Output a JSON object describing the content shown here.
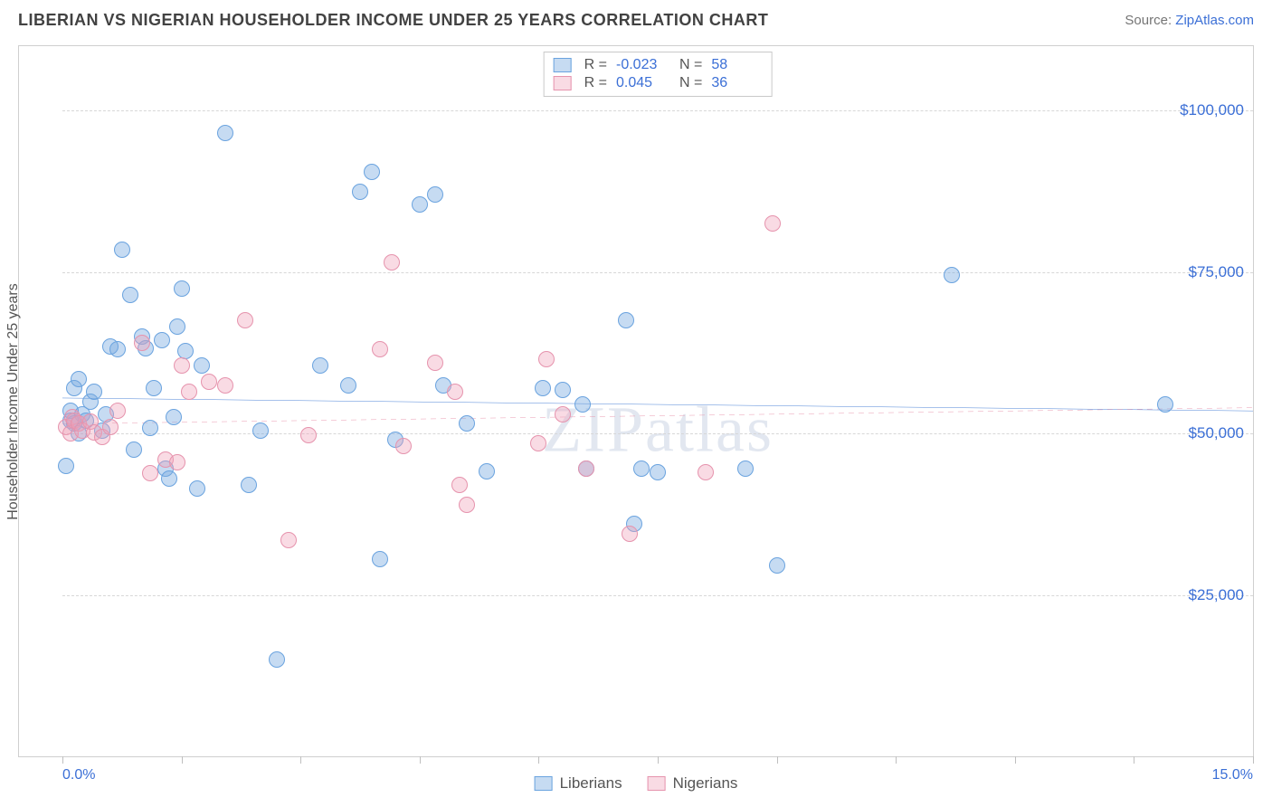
{
  "title": "LIBERIAN VS NIGERIAN HOUSEHOLDER INCOME UNDER 25 YEARS CORRELATION CHART",
  "source_prefix": "Source: ",
  "source_name": "ZipAtlas.com",
  "y_axis_label": "Householder Income Under 25 years",
  "watermark": "ZIPatlas",
  "chart": {
    "type": "scatter",
    "background_color": "#ffffff",
    "grid_color": "#d7d7d7",
    "xlim": [
      0,
      15
    ],
    "ylim": [
      0,
      110000
    ],
    "x_ticks": [
      0,
      1.5,
      3,
      4.5,
      6,
      7.5,
      9,
      10.5,
      12,
      13.5,
      15
    ],
    "x_labels": {
      "0": "0.0%",
      "15": "15.0%"
    },
    "y_gridlines": [
      25000,
      50000,
      75000,
      100000
    ],
    "y_labels": {
      "25000": "$25,000",
      "50000": "$50,000",
      "75000": "$75,000",
      "100000": "$100,000"
    },
    "marker_radius": 9,
    "marker_border_width": 1.5,
    "trend_line_width": 3,
    "label_fontsize": 16,
    "tick_color": "#bfbfbf"
  },
  "series": [
    {
      "key": "liberians",
      "name": "Liberians",
      "fill": "rgba(120,170,225,0.42)",
      "stroke": "#6aa3df",
      "line_color": "#2f6fd0",
      "R": "-0.023",
      "N": "58",
      "trend": {
        "x1": 0,
        "y1": 55500,
        "x2": 15,
        "y2": 53500,
        "dash": "none"
      },
      "points": [
        [
          0.05,
          45000
        ],
        [
          0.1,
          52000
        ],
        [
          0.1,
          53500
        ],
        [
          0.15,
          51500
        ],
        [
          0.15,
          57000
        ],
        [
          0.2,
          58500
        ],
        [
          0.2,
          50000
        ],
        [
          0.25,
          53000
        ],
        [
          0.3,
          52000
        ],
        [
          0.35,
          55000
        ],
        [
          0.4,
          56500
        ],
        [
          0.5,
          50500
        ],
        [
          0.55,
          53000
        ],
        [
          0.6,
          63500
        ],
        [
          0.7,
          63000
        ],
        [
          0.75,
          78500
        ],
        [
          0.85,
          71500
        ],
        [
          0.9,
          47500
        ],
        [
          1.0,
          65000
        ],
        [
          1.05,
          63200
        ],
        [
          1.1,
          50800
        ],
        [
          1.15,
          57000
        ],
        [
          1.25,
          64500
        ],
        [
          1.3,
          44500
        ],
        [
          1.35,
          43000
        ],
        [
          1.4,
          52500
        ],
        [
          1.45,
          66500
        ],
        [
          1.5,
          72500
        ],
        [
          1.55,
          62800
        ],
        [
          1.7,
          41500
        ],
        [
          1.75,
          60500
        ],
        [
          2.05,
          96500
        ],
        [
          2.35,
          42000
        ],
        [
          2.5,
          50500
        ],
        [
          2.7,
          15000
        ],
        [
          3.25,
          60500
        ],
        [
          3.6,
          57500
        ],
        [
          3.75,
          87500
        ],
        [
          3.9,
          90500
        ],
        [
          4.0,
          30500
        ],
        [
          4.2,
          49000
        ],
        [
          4.5,
          85500
        ],
        [
          4.7,
          87000
        ],
        [
          4.8,
          57500
        ],
        [
          5.1,
          51500
        ],
        [
          5.35,
          44200
        ],
        [
          6.05,
          57000
        ],
        [
          6.3,
          56800
        ],
        [
          6.55,
          54500
        ],
        [
          6.6,
          44500
        ],
        [
          7.1,
          67500
        ],
        [
          7.2,
          36000
        ],
        [
          7.3,
          44500
        ],
        [
          7.5,
          44000
        ],
        [
          8.6,
          44500
        ],
        [
          9.0,
          29500
        ],
        [
          11.2,
          74500
        ],
        [
          13.9,
          54500
        ]
      ]
    },
    {
      "key": "nigerians",
      "name": "Nigerians",
      "fill": "rgba(240,160,185,0.38)",
      "stroke": "#e693ad",
      "line_color": "#e68aa4",
      "R": "0.045",
      "N": "36",
      "trend": {
        "x1": 0,
        "y1": 51500,
        "x2": 15,
        "y2": 54000,
        "dash": "6,5"
      },
      "points": [
        [
          0.05,
          51000
        ],
        [
          0.1,
          50000
        ],
        [
          0.12,
          52500
        ],
        [
          0.15,
          52000
        ],
        [
          0.2,
          51500
        ],
        [
          0.25,
          50500
        ],
        [
          0.35,
          51800
        ],
        [
          0.4,
          50200
        ],
        [
          0.5,
          49500
        ],
        [
          0.6,
          51000
        ],
        [
          0.7,
          53500
        ],
        [
          1.0,
          64000
        ],
        [
          1.1,
          43800
        ],
        [
          1.3,
          46000
        ],
        [
          1.45,
          45500
        ],
        [
          1.5,
          60500
        ],
        [
          1.6,
          56500
        ],
        [
          1.85,
          58000
        ],
        [
          2.05,
          57500
        ],
        [
          2.3,
          67500
        ],
        [
          2.85,
          33500
        ],
        [
          3.1,
          49800
        ],
        [
          4.0,
          63000
        ],
        [
          4.15,
          76500
        ],
        [
          4.3,
          48000
        ],
        [
          4.7,
          61000
        ],
        [
          4.95,
          56500
        ],
        [
          5.0,
          42000
        ],
        [
          5.1,
          39000
        ],
        [
          6.0,
          48500
        ],
        [
          6.1,
          61500
        ],
        [
          6.3,
          53000
        ],
        [
          6.6,
          44500
        ],
        [
          7.15,
          34500
        ],
        [
          8.1,
          44000
        ],
        [
          8.95,
          82500
        ]
      ]
    }
  ],
  "legend": {
    "R_label": "R =",
    "N_label": "N ="
  }
}
